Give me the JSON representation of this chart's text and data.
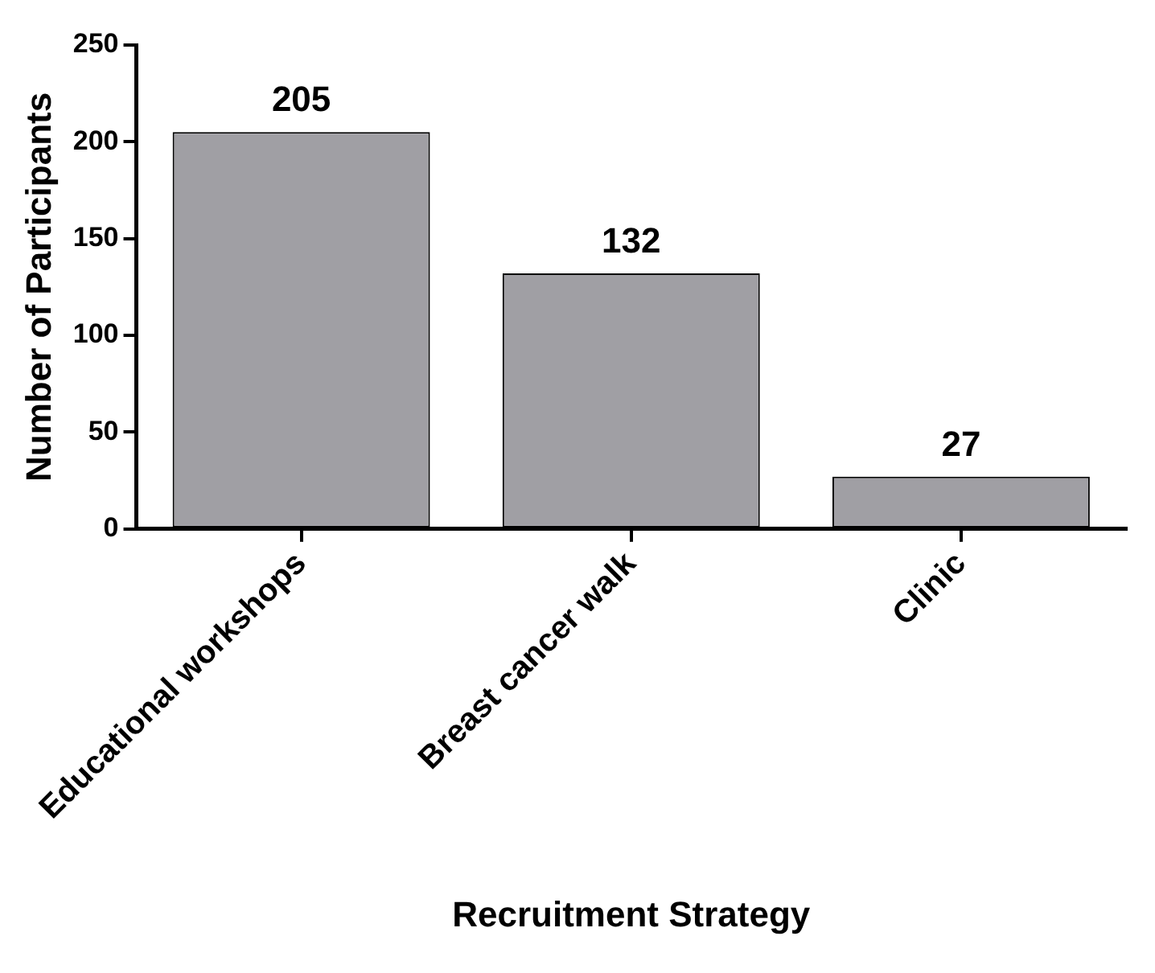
{
  "chart_data": {
    "type": "bar",
    "xlabel": "Recruitment Strategy",
    "ylabel": "Number of Participants",
    "categories": [
      "Educational workshops",
      "Breast cancer walk",
      "Clinic"
    ],
    "values": [
      205,
      132,
      27
    ],
    "color": "#a09fa4",
    "ylim": [
      0,
      250
    ],
    "yticks": [
      0,
      50,
      100,
      150,
      200,
      250
    ],
    "grid": false,
    "legend": false,
    "data_labels": true
  }
}
